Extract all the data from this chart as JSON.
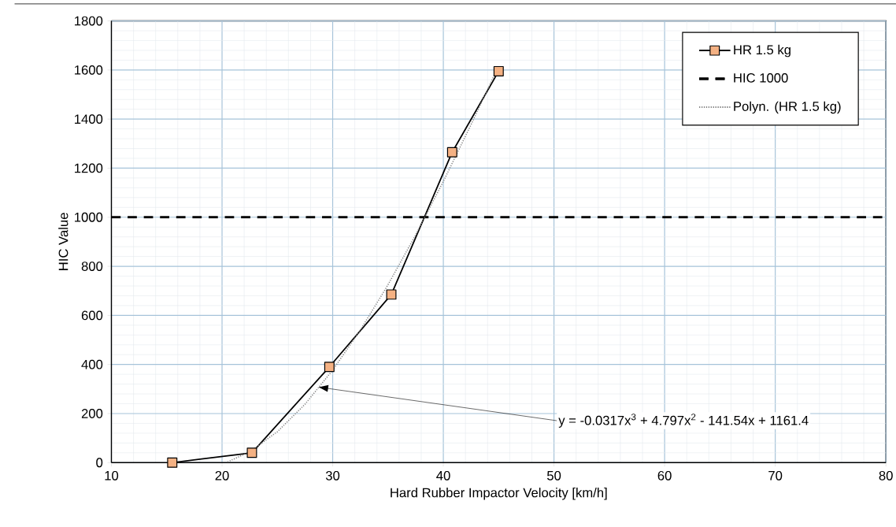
{
  "chart_data": {
    "type": "line",
    "xlabel": "Hard Rubber Impactor Velocity [km/h]",
    "ylabel": "HIC Value",
    "x": [
      15.5,
      22.7,
      29.7,
      35.3,
      40.8,
      45.0
    ],
    "series": [
      {
        "name": "HR 1.5 kg",
        "color": "#f4b183",
        "values": [
          0,
          40,
          390,
          685,
          1265,
          1595
        ]
      },
      {
        "name": "Polyn. (HR 1.5 kg)",
        "color": "#7f7f7f",
        "marker": "none",
        "line_style": "dotted",
        "x": [
          20.5,
          22.5,
          25,
          27.5,
          30,
          32.5,
          35,
          37.5,
          40,
          42.5,
          45
        ],
        "values": [
          3,
          44,
          126,
          238,
          377,
          540,
          725,
          928,
          1146,
          1377,
          1617
        ]
      }
    ],
    "ref_lines": [
      {
        "axis": "y",
        "value": 1000,
        "label": "HIC 1000",
        "color": "#000000",
        "line_style": "dashed"
      }
    ],
    "annotations": [
      {
        "text": "y = -0.0317x$^{3}$ + 4.797x$^{2}$ - 141.54x + 1161.4",
        "x": 28.75,
        "y": 307.5
      }
    ],
    "xlim": [
      10,
      80
    ],
    "ylim": [
      0,
      1800
    ],
    "xticks": [
      10,
      20,
      30,
      40,
      50,
      60,
      70,
      80
    ],
    "yticks": [
      0,
      200,
      400,
      600,
      800,
      1000,
      1200,
      1400,
      1600,
      1800
    ],
    "grid": true,
    "legend": "top right",
    "marker": "square",
    "line_style": "solid"
  }
}
